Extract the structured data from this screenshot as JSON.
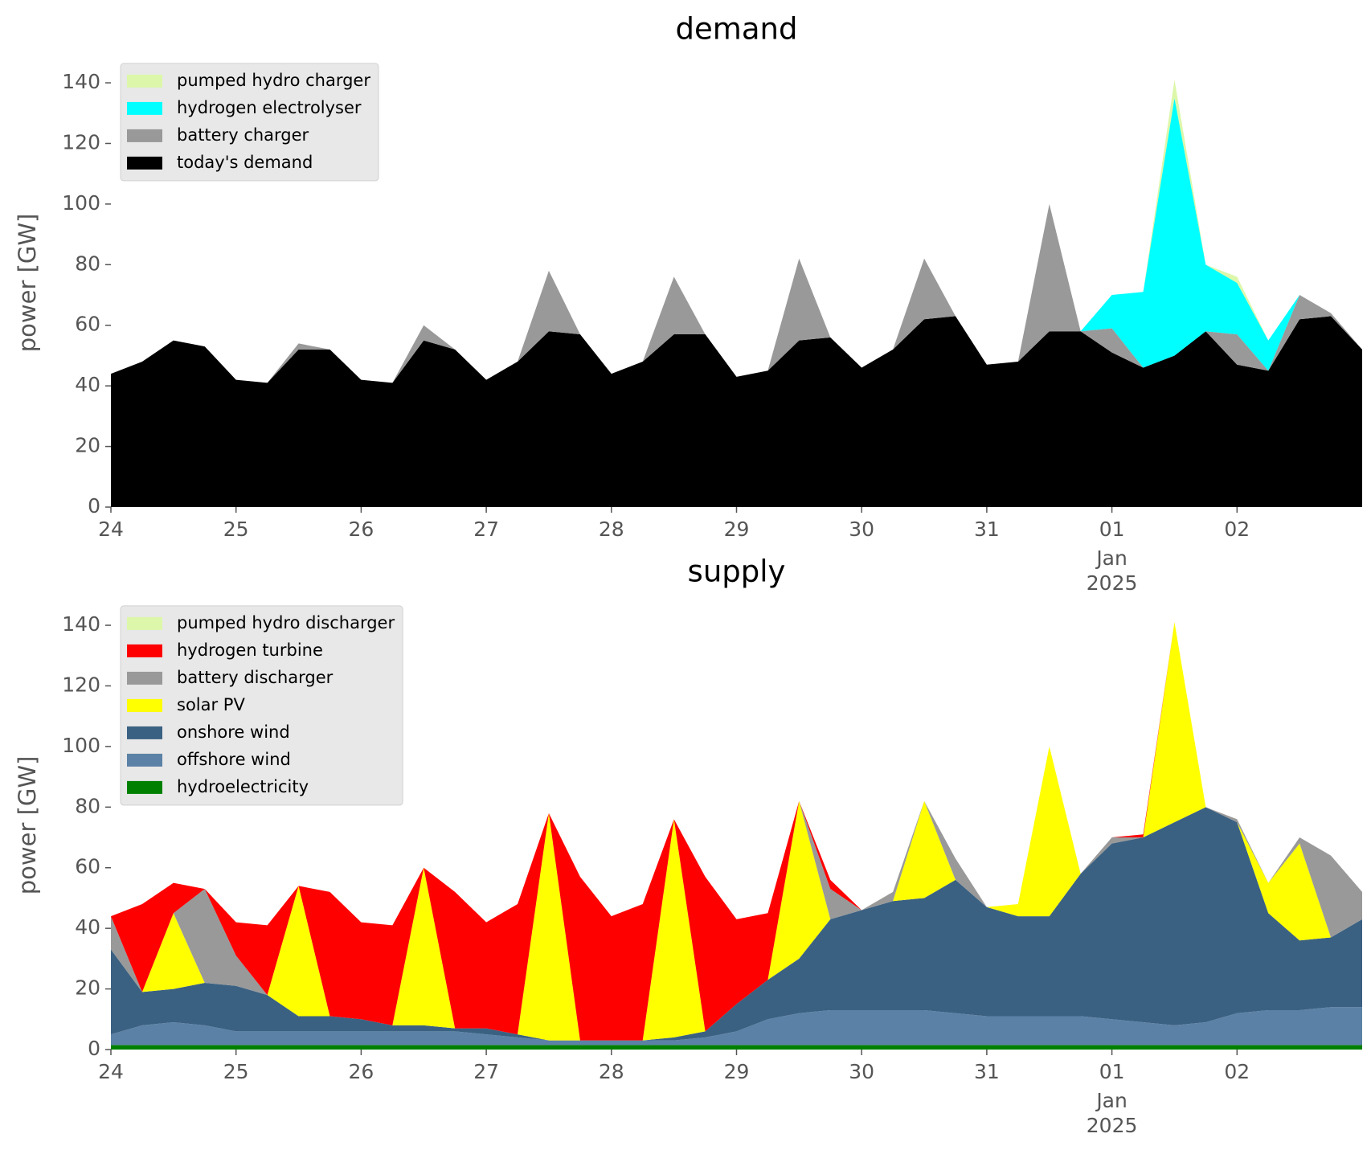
{
  "chart_data": [
    {
      "type": "area",
      "title": "demand",
      "ylabel": "power [GW]",
      "x": [
        0,
        0.25,
        0.5,
        0.75,
        1,
        1.25,
        1.5,
        1.75,
        2,
        2.25,
        2.5,
        2.75,
        3,
        3.25,
        3.5,
        3.75,
        4,
        4.25,
        4.5,
        4.75,
        5,
        5.25,
        5.5,
        5.75,
        6,
        6.25,
        6.5,
        6.75,
        7,
        7.25,
        7.5,
        7.75,
        8,
        8.25,
        8.5,
        8.75,
        9,
        9.25,
        9.5,
        9.75,
        10
      ],
      "xlim": [
        0,
        10
      ],
      "xticks": [
        {
          "value": 0,
          "label": "24"
        },
        {
          "value": 1,
          "label": "25"
        },
        {
          "value": 2,
          "label": "26"
        },
        {
          "value": 3,
          "label": "27"
        },
        {
          "value": 4,
          "label": "28"
        },
        {
          "value": 5,
          "label": "29"
        },
        {
          "value": 6,
          "label": "30"
        },
        {
          "value": 7,
          "label": "31"
        },
        {
          "value": 8,
          "label": "01"
        },
        {
          "value": 9,
          "label": "02"
        }
      ],
      "date_note": {
        "at": 8,
        "lines": [
          "Jan",
          "2025"
        ]
      },
      "ylim": [
        0,
        148
      ],
      "yticks": [
        0,
        20,
        40,
        60,
        80,
        100,
        120,
        140
      ],
      "stacked": true,
      "legend": "upper left",
      "series": [
        {
          "name": "pumped hydro charger",
          "color": "#dcf7a9",
          "values": [
            0,
            0,
            0,
            0,
            0,
            0,
            0,
            0,
            0,
            0,
            0,
            0,
            0,
            0,
            0,
            0,
            0,
            0,
            0,
            0,
            0,
            0,
            0,
            0,
            0,
            0,
            0,
            0,
            0,
            0,
            0,
            0,
            0,
            0,
            6,
            0,
            2,
            0,
            0,
            0,
            0
          ]
        },
        {
          "name": "hydrogen electrolyser",
          "color": "#00ffff",
          "values": [
            0,
            0,
            0,
            0,
            0,
            0,
            0,
            0,
            0,
            0,
            0,
            0,
            0,
            0,
            0,
            0,
            0,
            0,
            0,
            0,
            0,
            0,
            0,
            0,
            0,
            0,
            0,
            0,
            0,
            0,
            0,
            0,
            11,
            25,
            85,
            22,
            17,
            10,
            0,
            0,
            0
          ]
        },
        {
          "name": "battery charger",
          "color": "#999999",
          "values": [
            0,
            0,
            0,
            0,
            0,
            0,
            2,
            0,
            0,
            0,
            5,
            0,
            0,
            0,
            20,
            0,
            0,
            0,
            19,
            0,
            0,
            0,
            27,
            0,
            0,
            0,
            20,
            0,
            0,
            0,
            42,
            0,
            8,
            0,
            0,
            0,
            10,
            0,
            8,
            1,
            0
          ]
        },
        {
          "name": "today's demand",
          "color": "#000000",
          "values": [
            44,
            48,
            55,
            53,
            42,
            41,
            52,
            52,
            42,
            41,
            55,
            52,
            42,
            48,
            58,
            57,
            44,
            48,
            57,
            57,
            43,
            45,
            55,
            56,
            46,
            52,
            62,
            63,
            47,
            48,
            58,
            58,
            51,
            46,
            50,
            58,
            47,
            45,
            62,
            63,
            52
          ]
        }
      ]
    },
    {
      "type": "area",
      "title": "supply",
      "ylabel": "power [GW]",
      "x": [
        0,
        0.25,
        0.5,
        0.75,
        1,
        1.25,
        1.5,
        1.75,
        2,
        2.25,
        2.5,
        2.75,
        3,
        3.25,
        3.5,
        3.75,
        4,
        4.25,
        4.5,
        4.75,
        5,
        5.25,
        5.5,
        5.75,
        6,
        6.25,
        6.5,
        6.75,
        7,
        7.25,
        7.5,
        7.75,
        8,
        8.25,
        8.5,
        8.75,
        9,
        9.25,
        9.5,
        9.75,
        10
      ],
      "xlim": [
        0,
        10
      ],
      "xticks": [
        {
          "value": 0,
          "label": "24"
        },
        {
          "value": 1,
          "label": "25"
        },
        {
          "value": 2,
          "label": "26"
        },
        {
          "value": 3,
          "label": "27"
        },
        {
          "value": 4,
          "label": "28"
        },
        {
          "value": 5,
          "label": "29"
        },
        {
          "value": 6,
          "label": "30"
        },
        {
          "value": 7,
          "label": "31"
        },
        {
          "value": 8,
          "label": "01"
        },
        {
          "value": 9,
          "label": "02"
        }
      ],
      "date_note": {
        "at": 8,
        "lines": [
          "Jan",
          "2025"
        ]
      },
      "ylim": [
        0,
        148
      ],
      "yticks": [
        0,
        20,
        40,
        60,
        80,
        100,
        120,
        140
      ],
      "stacked": true,
      "legend": "upper left",
      "series": [
        {
          "name": "pumped hydro discharger",
          "color": "#dcf7a9",
          "values": [
            0,
            0,
            0,
            0,
            0,
            0,
            0,
            0,
            0,
            0,
            0,
            0,
            0,
            0,
            0,
            0,
            0,
            0,
            0,
            0,
            0,
            0,
            0,
            0,
            0,
            0,
            0,
            0,
            0,
            0,
            0,
            0,
            0,
            0,
            0,
            0,
            0,
            0,
            0,
            0,
            0
          ]
        },
        {
          "name": "hydrogen turbine",
          "color": "#ff0000",
          "values": [
            0,
            29,
            10,
            0,
            11,
            23,
            0,
            41,
            32,
            33,
            0,
            45,
            35,
            43,
            0,
            54,
            41,
            45,
            0,
            51,
            28,
            22,
            0,
            3,
            0,
            0,
            0,
            0,
            0,
            0,
            0,
            0,
            0,
            1,
            0,
            0,
            0,
            0,
            0,
            0,
            0
          ]
        },
        {
          "name": "battery discharger",
          "color": "#999999",
          "values": [
            11,
            0,
            0,
            31,
            10,
            0,
            0,
            0,
            0,
            0,
            0,
            0,
            0,
            0,
            0,
            0,
            0,
            0,
            0,
            0,
            0,
            0,
            0,
            10,
            0,
            3,
            0,
            7,
            0,
            0,
            0,
            0,
            2,
            0,
            0,
            0,
            1,
            0,
            2,
            27,
            9
          ]
        },
        {
          "name": "solar PV",
          "color": "#ffff00",
          "values": [
            0,
            0,
            25,
            0,
            0,
            0,
            43,
            0,
            0,
            0,
            52,
            0,
            0,
            0,
            75,
            0,
            0,
            0,
            72,
            0,
            0,
            0,
            52,
            0,
            0,
            0,
            32,
            0,
            0,
            4,
            56,
            0,
            0,
            0,
            66,
            0,
            0,
            10,
            32,
            0,
            0
          ]
        },
        {
          "name": "onshore wind",
          "color": "#3b6182",
          "values": [
            28,
            11,
            11,
            14,
            15,
            12,
            5,
            5,
            4,
            2,
            2,
            1,
            2,
            1,
            0,
            0,
            0,
            0,
            1,
            2,
            9,
            13,
            18,
            30,
            33,
            36,
            37,
            44,
            36,
            33,
            33,
            47,
            58,
            61,
            67,
            71,
            63,
            32,
            23,
            23,
            29
          ]
        },
        {
          "name": "offshore wind",
          "color": "#5b82a6",
          "values": [
            3.5,
            6.5,
            7.5,
            6.5,
            4.5,
            4.5,
            4.5,
            4.5,
            4.5,
            4.5,
            4.5,
            4.5,
            3.5,
            2.5,
            1.5,
            1.5,
            1.5,
            1.5,
            1.5,
            2.5,
            4.5,
            8.5,
            10.5,
            11.5,
            11.5,
            11.5,
            11.5,
            10.5,
            9.5,
            9.5,
            9.5,
            9.5,
            8.5,
            7.5,
            6.5,
            7.5,
            10.5,
            11.5,
            11.5,
            12.5,
            12.5
          ]
        },
        {
          "name": "hydroelectricity",
          "color": "#008000",
          "values": [
            1.5,
            1.5,
            1.5,
            1.5,
            1.5,
            1.5,
            1.5,
            1.5,
            1.5,
            1.5,
            1.5,
            1.5,
            1.5,
            1.5,
            1.5,
            1.5,
            1.5,
            1.5,
            1.5,
            1.5,
            1.5,
            1.5,
            1.5,
            1.5,
            1.5,
            1.5,
            1.5,
            1.5,
            1.5,
            1.5,
            1.5,
            1.5,
            1.5,
            1.5,
            1.5,
            1.5,
            1.5,
            1.5,
            1.5,
            1.5,
            1.5
          ]
        }
      ]
    }
  ]
}
